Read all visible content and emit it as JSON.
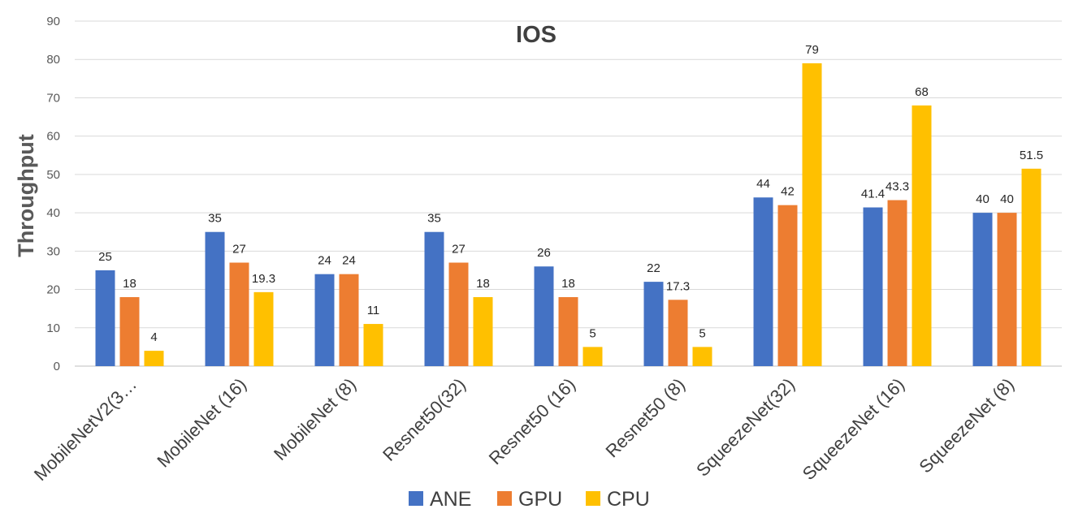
{
  "chart_data": {
    "type": "bar",
    "title": "IOS",
    "xlabel": "",
    "ylabel": "Throughput",
    "ylim": [
      0,
      90
    ],
    "yticks": [
      0,
      10,
      20,
      30,
      40,
      50,
      60,
      70,
      80,
      90
    ],
    "grid": true,
    "legend_position": "bottom",
    "categories": [
      "MobileNetV2(3…",
      "MobileNet (16)",
      "MobileNet (8)",
      "Resnet50(32)",
      "Resnet50 (16)",
      "Resnet50 (8)",
      "SqueezeNet(32)",
      "SqueezeNet (16)",
      "SqueezeNet (8)"
    ],
    "series": [
      {
        "name": "ANE",
        "color": "#4472c4",
        "values": [
          25,
          35,
          24,
          35,
          26,
          22,
          44,
          41.4,
          40
        ],
        "labels": [
          "25",
          "35",
          "24",
          "35",
          "26",
          "22",
          "44",
          "41.4",
          "40"
        ]
      },
      {
        "name": "GPU",
        "color": "#ed7d31",
        "values": [
          18,
          27,
          24,
          27,
          18,
          17.3,
          42,
          43.3,
          40
        ],
        "labels": [
          "18",
          "27",
          "24",
          "27",
          "18",
          "17.3",
          "42",
          "43.3",
          "40"
        ]
      },
      {
        "name": "CPU",
        "color": "#ffc000",
        "values": [
          4,
          19.3,
          11,
          18,
          5,
          5,
          79,
          68,
          51.5
        ],
        "labels": [
          "4",
          "19.3",
          "11",
          "18",
          "5",
          "5",
          "79",
          "68",
          "51.5"
        ]
      }
    ]
  }
}
